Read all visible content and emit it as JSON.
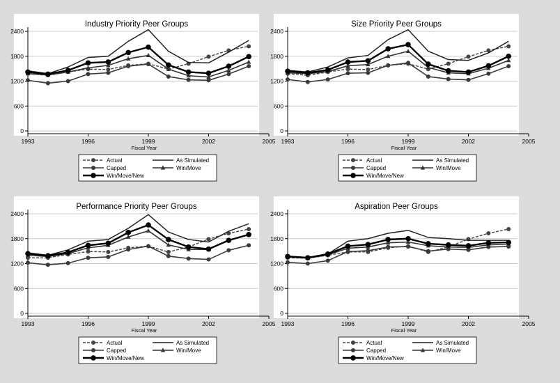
{
  "legend_labels": {
    "actual": "Actual",
    "as_simulated": "As Simulated",
    "capped": "Capped",
    "win_move": "Win/Move",
    "win_move_new": "Win/Move/New"
  },
  "chart_data": [
    {
      "type": "line",
      "title": "Industry Priority Peer Groups",
      "xlabel": "Fiscal Year",
      "ylabel": "",
      "xlim": [
        1993,
        2005
      ],
      "ylim": [
        0,
        2400
      ],
      "xticks": [
        1993,
        1996,
        1999,
        2002,
        2005
      ],
      "yticks": [
        0,
        600,
        1200,
        1800,
        2400
      ],
      "grid": true,
      "legend_position": "bottom",
      "x": [
        1993,
        1994,
        1995,
        1996,
        1997,
        1998,
        1999,
        2000,
        2001,
        2002,
        2003,
        2004
      ],
      "series": [
        {
          "name": "Actual",
          "style": "dashed",
          "marker": "circle",
          "values": [
            1380,
            1340,
            1420,
            1490,
            1480,
            1580,
            1620,
            1490,
            1620,
            1790,
            1940,
            2040
          ]
        },
        {
          "name": "As Simulated",
          "style": "solid",
          "marker": "none",
          "values": [
            1450,
            1380,
            1540,
            1770,
            1800,
            2160,
            2440,
            1920,
            1650,
            1640,
            1900,
            2180
          ]
        },
        {
          "name": "Capped",
          "style": "solid",
          "marker": "circle",
          "values": [
            1220,
            1150,
            1200,
            1370,
            1400,
            1560,
            1610,
            1310,
            1230,
            1220,
            1370,
            1560
          ]
        },
        {
          "name": "Win/Move",
          "style": "solid",
          "marker": "triangle",
          "values": [
            1380,
            1350,
            1420,
            1520,
            1580,
            1740,
            1820,
            1490,
            1330,
            1300,
            1460,
            1660
          ]
        },
        {
          "name": "Win/Move/New",
          "style": "solid",
          "marker": "circle-large",
          "values": [
            1420,
            1370,
            1460,
            1640,
            1660,
            1890,
            2020,
            1590,
            1420,
            1390,
            1560,
            1790
          ]
        }
      ]
    },
    {
      "type": "line",
      "title": "Size Priority Peer Groups",
      "xlabel": "Fiscal Year",
      "ylabel": "",
      "xlim": [
        1993,
        2005
      ],
      "ylim": [
        0,
        2400
      ],
      "xticks": [
        1993,
        1996,
        1999,
        2002,
        2005
      ],
      "yticks": [
        0,
        600,
        1200,
        1800,
        2400
      ],
      "grid": true,
      "legend_position": "bottom",
      "x": [
        1993,
        1994,
        1995,
        1996,
        1997,
        1998,
        1999,
        2000,
        2001,
        2002,
        2003,
        2004
      ],
      "series": [
        {
          "name": "Actual",
          "style": "dashed",
          "marker": "circle",
          "values": [
            1380,
            1340,
            1420,
            1490,
            1480,
            1580,
            1620,
            1490,
            1620,
            1790,
            1940,
            2040
          ]
        },
        {
          "name": "As Simulated",
          "style": "solid",
          "marker": "none",
          "values": [
            1460,
            1420,
            1540,
            1760,
            1820,
            2200,
            2440,
            1920,
            1720,
            1700,
            1880,
            2160
          ]
        },
        {
          "name": "Capped",
          "style": "solid",
          "marker": "circle",
          "values": [
            1240,
            1180,
            1240,
            1390,
            1400,
            1580,
            1640,
            1310,
            1250,
            1230,
            1380,
            1560
          ]
        },
        {
          "name": "Win/Move",
          "style": "solid",
          "marker": "triangle",
          "values": [
            1400,
            1380,
            1430,
            1570,
            1600,
            1800,
            1920,
            1530,
            1400,
            1380,
            1510,
            1700
          ]
        },
        {
          "name": "Win/Move/New",
          "style": "solid",
          "marker": "circle-large",
          "values": [
            1440,
            1400,
            1470,
            1660,
            1690,
            1980,
            2080,
            1610,
            1450,
            1420,
            1570,
            1800
          ]
        }
      ]
    },
    {
      "type": "line",
      "title": "Performance Priority Peer Groups",
      "xlabel": "Fiscal Year",
      "ylabel": "",
      "xlim": [
        1993,
        2005
      ],
      "ylim": [
        0,
        2400
      ],
      "xticks": [
        1993,
        1996,
        1999,
        2002,
        2005
      ],
      "yticks": [
        0,
        600,
        1200,
        1800,
        2400
      ],
      "grid": true,
      "legend_position": "bottom",
      "x": [
        1993,
        1994,
        1995,
        1996,
        1997,
        1998,
        1999,
        2000,
        2001,
        2002,
        2003,
        2004
      ],
      "series": [
        {
          "name": "Actual",
          "style": "dashed",
          "marker": "circle",
          "values": [
            1340,
            1340,
            1420,
            1490,
            1480,
            1580,
            1620,
            1480,
            1600,
            1790,
            1930,
            2030
          ]
        },
        {
          "name": "As Simulated",
          "style": "solid",
          "marker": "none",
          "values": [
            1460,
            1400,
            1530,
            1740,
            1780,
            2050,
            2380,
            1960,
            1780,
            1720,
            1980,
            2160
          ]
        },
        {
          "name": "Capped",
          "style": "solid",
          "marker": "circle",
          "values": [
            1220,
            1170,
            1210,
            1340,
            1360,
            1540,
            1620,
            1380,
            1320,
            1300,
            1520,
            1640
          ]
        },
        {
          "name": "Win/Move",
          "style": "solid",
          "marker": "triangle",
          "values": [
            1400,
            1370,
            1440,
            1580,
            1640,
            1840,
            1990,
            1650,
            1540,
            1540,
            1760,
            1900
          ]
        },
        {
          "name": "Win/Move/New",
          "style": "solid",
          "marker": "circle-large",
          "values": [
            1440,
            1390,
            1470,
            1640,
            1690,
            1950,
            2130,
            1780,
            1600,
            1550,
            1760,
            1900
          ]
        }
      ]
    },
    {
      "type": "line",
      "title": "Aspiration Peer Groups",
      "xlabel": "Fiscal Year",
      "ylabel": "",
      "xlim": [
        1993,
        2005
      ],
      "ylim": [
        0,
        2400
      ],
      "xticks": [
        1993,
        1996,
        1999,
        2002,
        2005
      ],
      "yticks": [
        0,
        600,
        1200,
        1800,
        2400
      ],
      "grid": true,
      "legend_position": "bottom",
      "x": [
        1993,
        1994,
        1995,
        1996,
        1997,
        1998,
        1999,
        2000,
        2001,
        2002,
        2003,
        2004
      ],
      "series": [
        {
          "name": "Actual",
          "style": "dashed",
          "marker": "circle",
          "values": [
            1340,
            1330,
            1400,
            1480,
            1480,
            1580,
            1620,
            1480,
            1600,
            1790,
            1930,
            2030
          ]
        },
        {
          "name": "As Simulated",
          "style": "solid",
          "marker": "none",
          "values": [
            1380,
            1350,
            1430,
            1740,
            1800,
            1930,
            2000,
            1830,
            1800,
            1760,
            1760,
            1760
          ]
        },
        {
          "name": "Capped",
          "style": "solid",
          "marker": "circle",
          "values": [
            1230,
            1200,
            1270,
            1490,
            1510,
            1600,
            1610,
            1500,
            1550,
            1530,
            1600,
            1610
          ]
        },
        {
          "name": "Win/Move",
          "style": "solid",
          "marker": "triangle",
          "values": [
            1360,
            1330,
            1410,
            1570,
            1600,
            1700,
            1720,
            1630,
            1600,
            1590,
            1650,
            1670
          ]
        },
        {
          "name": "Win/Move/New",
          "style": "solid",
          "marker": "circle-large",
          "values": [
            1370,
            1340,
            1430,
            1620,
            1660,
            1780,
            1800,
            1680,
            1650,
            1630,
            1700,
            1710
          ]
        }
      ]
    }
  ]
}
